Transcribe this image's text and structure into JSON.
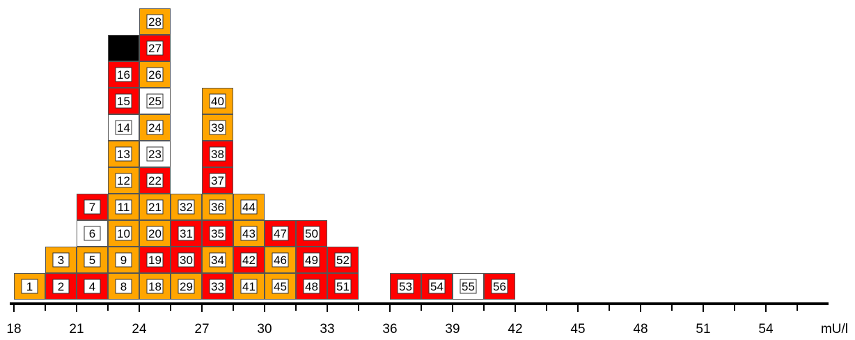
{
  "chart_data": {
    "type": "histogram-dot",
    "unit": "mU/l",
    "xlim": [
      18,
      57
    ],
    "bin_width": 1.5,
    "x_ticks": [
      "18",
      "21",
      "24",
      "27",
      "30",
      "33",
      "36",
      "39",
      "42",
      "45",
      "48",
      "51",
      "54"
    ],
    "colors": {
      "orange": "#FFA500",
      "red": "#FF0000",
      "black": "#000000",
      "white": "#FFFFFF"
    },
    "columns": [
      {
        "bin_start": 18,
        "boxes": [
          {
            "id": "1",
            "color": "orange"
          }
        ]
      },
      {
        "bin_start": 19.5,
        "boxes": [
          {
            "id": "2",
            "color": "red"
          },
          {
            "id": "3",
            "color": "orange"
          }
        ]
      },
      {
        "bin_start": 21,
        "boxes": [
          {
            "id": "4",
            "color": "red"
          },
          {
            "id": "5",
            "color": "orange"
          },
          {
            "id": "6",
            "color": "white"
          },
          {
            "id": "7",
            "color": "red"
          }
        ]
      },
      {
        "bin_start": 22.5,
        "boxes": [
          {
            "id": "8",
            "color": "orange"
          },
          {
            "id": "9",
            "color": "orange"
          },
          {
            "id": "10",
            "color": "orange"
          },
          {
            "id": "11",
            "color": "orange"
          },
          {
            "id": "12",
            "color": "orange"
          },
          {
            "id": "13",
            "color": "orange"
          },
          {
            "id": "14",
            "color": "white"
          },
          {
            "id": "15",
            "color": "red"
          },
          {
            "id": "16",
            "color": "red"
          },
          {
            "id": "17",
            "color": "black"
          }
        ]
      },
      {
        "bin_start": 24,
        "boxes": [
          {
            "id": "18",
            "color": "orange"
          },
          {
            "id": "19",
            "color": "red"
          },
          {
            "id": "20",
            "color": "orange"
          },
          {
            "id": "21",
            "color": "orange"
          },
          {
            "id": "22",
            "color": "red"
          },
          {
            "id": "23",
            "color": "white"
          },
          {
            "id": "24",
            "color": "orange"
          },
          {
            "id": "25",
            "color": "white"
          },
          {
            "id": "26",
            "color": "orange"
          },
          {
            "id": "27",
            "color": "red"
          },
          {
            "id": "28",
            "color": "orange"
          }
        ]
      },
      {
        "bin_start": 25.5,
        "boxes": [
          {
            "id": "29",
            "color": "orange"
          },
          {
            "id": "30",
            "color": "red"
          },
          {
            "id": "31",
            "color": "red"
          },
          {
            "id": "32",
            "color": "orange"
          }
        ]
      },
      {
        "bin_start": 27,
        "boxes": [
          {
            "id": "33",
            "color": "red"
          },
          {
            "id": "34",
            "color": "orange"
          },
          {
            "id": "35",
            "color": "red"
          },
          {
            "id": "36",
            "color": "orange"
          },
          {
            "id": "37",
            "color": "red"
          },
          {
            "id": "38",
            "color": "red"
          },
          {
            "id": "39",
            "color": "orange"
          },
          {
            "id": "40",
            "color": "orange"
          }
        ]
      },
      {
        "bin_start": 28.5,
        "boxes": [
          {
            "id": "41",
            "color": "orange"
          },
          {
            "id": "42",
            "color": "red"
          },
          {
            "id": "43",
            "color": "orange"
          },
          {
            "id": "44",
            "color": "orange"
          }
        ]
      },
      {
        "bin_start": 30,
        "boxes": [
          {
            "id": "45",
            "color": "orange"
          },
          {
            "id": "46",
            "color": "orange"
          },
          {
            "id": "47",
            "color": "red"
          }
        ]
      },
      {
        "bin_start": 31.5,
        "boxes": [
          {
            "id": "48",
            "color": "red"
          },
          {
            "id": "49",
            "color": "red"
          },
          {
            "id": "50",
            "color": "red"
          }
        ]
      },
      {
        "bin_start": 33,
        "boxes": [
          {
            "id": "51",
            "color": "red"
          },
          {
            "id": "52",
            "color": "red"
          }
        ]
      },
      {
        "bin_start": 36,
        "boxes": [
          {
            "id": "53",
            "color": "red"
          }
        ]
      },
      {
        "bin_start": 37.5,
        "boxes": [
          {
            "id": "54",
            "color": "red"
          }
        ]
      },
      {
        "bin_start": 39,
        "boxes": [
          {
            "id": "55",
            "color": "white"
          }
        ]
      },
      {
        "bin_start": 40.5,
        "boxes": [
          {
            "id": "56",
            "color": "red"
          }
        ]
      }
    ]
  }
}
